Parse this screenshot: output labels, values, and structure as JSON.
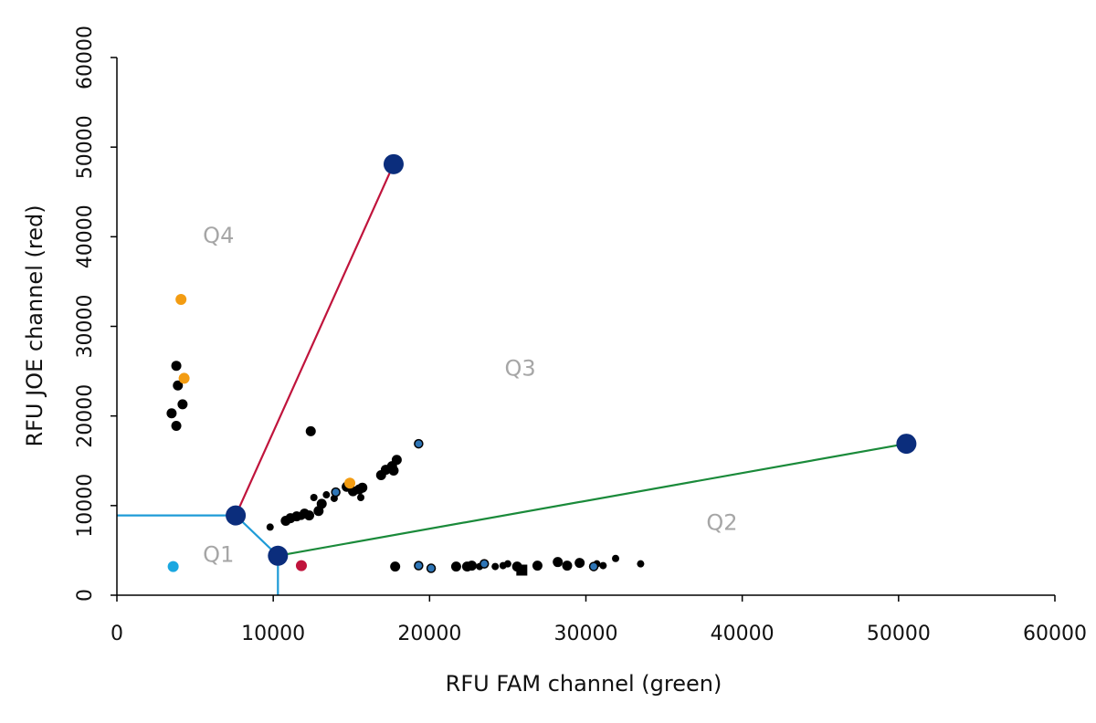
{
  "chart_data": {
    "type": "scatter",
    "title": "",
    "xlabel": "RFU FAM channel (green)",
    "ylabel": "RFU JOE channel (red)",
    "xlim": [
      0,
      60000
    ],
    "ylim": [
      0,
      60000
    ],
    "xticks": [
      0,
      10000,
      20000,
      30000,
      40000,
      50000,
      60000
    ],
    "yticks": [
      0,
      10000,
      20000,
      30000,
      40000,
      50000,
      60000
    ],
    "xtick_labels": [
      "0",
      "10000",
      "20000",
      "30000",
      "40000",
      "50000",
      "60000"
    ],
    "ytick_labels": [
      "0",
      "10000",
      "20000",
      "30000",
      "40000",
      "50000",
      "60000"
    ],
    "grid": false,
    "colors": {
      "axis": "#000000",
      "samples": "#000000",
      "blue_samples": "#2e75b6",
      "cyan": "#1aa7e0",
      "orange": "#f39c12",
      "red": "#c0143c",
      "anchor": "#0b2d7c",
      "q1_boundary": "#1e9bd7",
      "q4_line": "#c0143c",
      "q2_line": "#1a8a3a",
      "quadrant_text": "#a6a6a6"
    },
    "boundary_lines": [
      {
        "name": "q1-boundary",
        "color": "#1e9bd7",
        "points": [
          [
            0,
            8900
          ],
          [
            7600,
            8900
          ],
          [
            10300,
            4400
          ],
          [
            10300,
            0
          ]
        ]
      },
      {
        "name": "q4-line",
        "color": "#c0143c",
        "points": [
          [
            7600,
            8900
          ],
          [
            17700,
            48100
          ]
        ]
      },
      {
        "name": "q2-line",
        "color": "#1a8a3a",
        "points": [
          [
            10300,
            4400
          ],
          [
            50500,
            16900
          ]
        ]
      }
    ],
    "anchor_points": [
      {
        "x": 7600,
        "y": 8900
      },
      {
        "x": 10300,
        "y": 4400
      },
      {
        "x": 17700,
        "y": 48100
      },
      {
        "x": 50500,
        "y": 16900
      }
    ],
    "quadrant_labels": [
      {
        "text": "Q1",
        "x": 6500,
        "y": 3700
      },
      {
        "text": "Q2",
        "x": 38700,
        "y": 7300
      },
      {
        "text": "Q3",
        "x": 25800,
        "y": 24500
      },
      {
        "text": "Q4",
        "x": 6500,
        "y": 39300
      }
    ],
    "series": [
      {
        "color": "#000000",
        "points": [
          {
            "x": 3500,
            "y": 20300,
            "s": "m"
          },
          {
            "x": 3800,
            "y": 18900,
            "s": "m"
          },
          {
            "x": 3800,
            "y": 25600,
            "s": "m"
          },
          {
            "x": 3900,
            "y": 23400,
            "s": "m"
          },
          {
            "x": 4200,
            "y": 21300,
            "s": "m"
          },
          {
            "x": 9800,
            "y": 7600,
            "s": "s"
          },
          {
            "x": 10800,
            "y": 8300,
            "s": "m"
          },
          {
            "x": 11100,
            "y": 8600,
            "s": "m"
          },
          {
            "x": 11500,
            "y": 8800,
            "s": "m"
          },
          {
            "x": 11800,
            "y": 8800,
            "s": "s"
          },
          {
            "x": 12000,
            "y": 9100,
            "s": "m"
          },
          {
            "x": 12300,
            "y": 8900,
            "s": "m"
          },
          {
            "x": 12400,
            "y": 18300,
            "s": "m"
          },
          {
            "x": 12600,
            "y": 10900,
            "s": "s"
          },
          {
            "x": 12900,
            "y": 9400,
            "s": "m"
          },
          {
            "x": 13100,
            "y": 10200,
            "s": "m"
          },
          {
            "x": 13400,
            "y": 11200,
            "s": "s"
          },
          {
            "x": 13900,
            "y": 10800,
            "s": "s"
          },
          {
            "x": 14700,
            "y": 12100,
            "s": "m"
          },
          {
            "x": 15100,
            "y": 11600,
            "s": "m"
          },
          {
            "x": 15500,
            "y": 11800,
            "s": "m"
          },
          {
            "x": 15600,
            "y": 10900,
            "s": "s"
          },
          {
            "x": 15700,
            "y": 12000,
            "s": "m"
          },
          {
            "x": 16900,
            "y": 13400,
            "s": "m"
          },
          {
            "x": 17200,
            "y": 14000,
            "s": "m"
          },
          {
            "x": 17600,
            "y": 14400,
            "s": "m"
          },
          {
            "x": 17700,
            "y": 13900,
            "s": "m"
          },
          {
            "x": 17900,
            "y": 15100,
            "s": "m"
          },
          {
            "x": 17800,
            "y": 3200,
            "s": "m"
          },
          {
            "x": 21700,
            "y": 3200,
            "s": "m"
          },
          {
            "x": 22400,
            "y": 3200,
            "s": "m"
          },
          {
            "x": 22700,
            "y": 3300,
            "s": "m"
          },
          {
            "x": 23200,
            "y": 3200,
            "s": "s"
          },
          {
            "x": 24200,
            "y": 3200,
            "s": "s"
          },
          {
            "x": 24700,
            "y": 3300,
            "s": "s"
          },
          {
            "x": 25000,
            "y": 3500,
            "s": "s"
          },
          {
            "x": 25600,
            "y": 3200,
            "s": "m"
          },
          {
            "x": 25900,
            "y": 2800,
            "sq": true
          },
          {
            "x": 26900,
            "y": 3300,
            "s": "m"
          },
          {
            "x": 28200,
            "y": 3700,
            "s": "m"
          },
          {
            "x": 28800,
            "y": 3300,
            "s": "m"
          },
          {
            "x": 29600,
            "y": 3600,
            "s": "m"
          },
          {
            "x": 30700,
            "y": 3500,
            "s": "s"
          },
          {
            "x": 31100,
            "y": 3300,
            "s": "s"
          },
          {
            "x": 31900,
            "y": 4100,
            "s": "s"
          },
          {
            "x": 33500,
            "y": 3500,
            "s": "s"
          }
        ]
      },
      {
        "color": "#2e75b6",
        "points": [
          {
            "x": 14000,
            "y": 11500
          },
          {
            "x": 19300,
            "y": 16900
          },
          {
            "x": 19300,
            "y": 3300
          },
          {
            "x": 20100,
            "y": 3000
          },
          {
            "x": 23500,
            "y": 3500
          },
          {
            "x": 30500,
            "y": 3200
          }
        ]
      },
      {
        "color": "#1aa7e0",
        "points": [
          {
            "x": 3600,
            "y": 3200
          }
        ]
      },
      {
        "color": "#f39c12",
        "points": [
          {
            "x": 4100,
            "y": 33000
          },
          {
            "x": 4300,
            "y": 24200
          },
          {
            "x": 14900,
            "y": 12500
          }
        ]
      },
      {
        "color": "#c0143c",
        "points": [
          {
            "x": 11800,
            "y": 3300
          }
        ]
      }
    ]
  }
}
